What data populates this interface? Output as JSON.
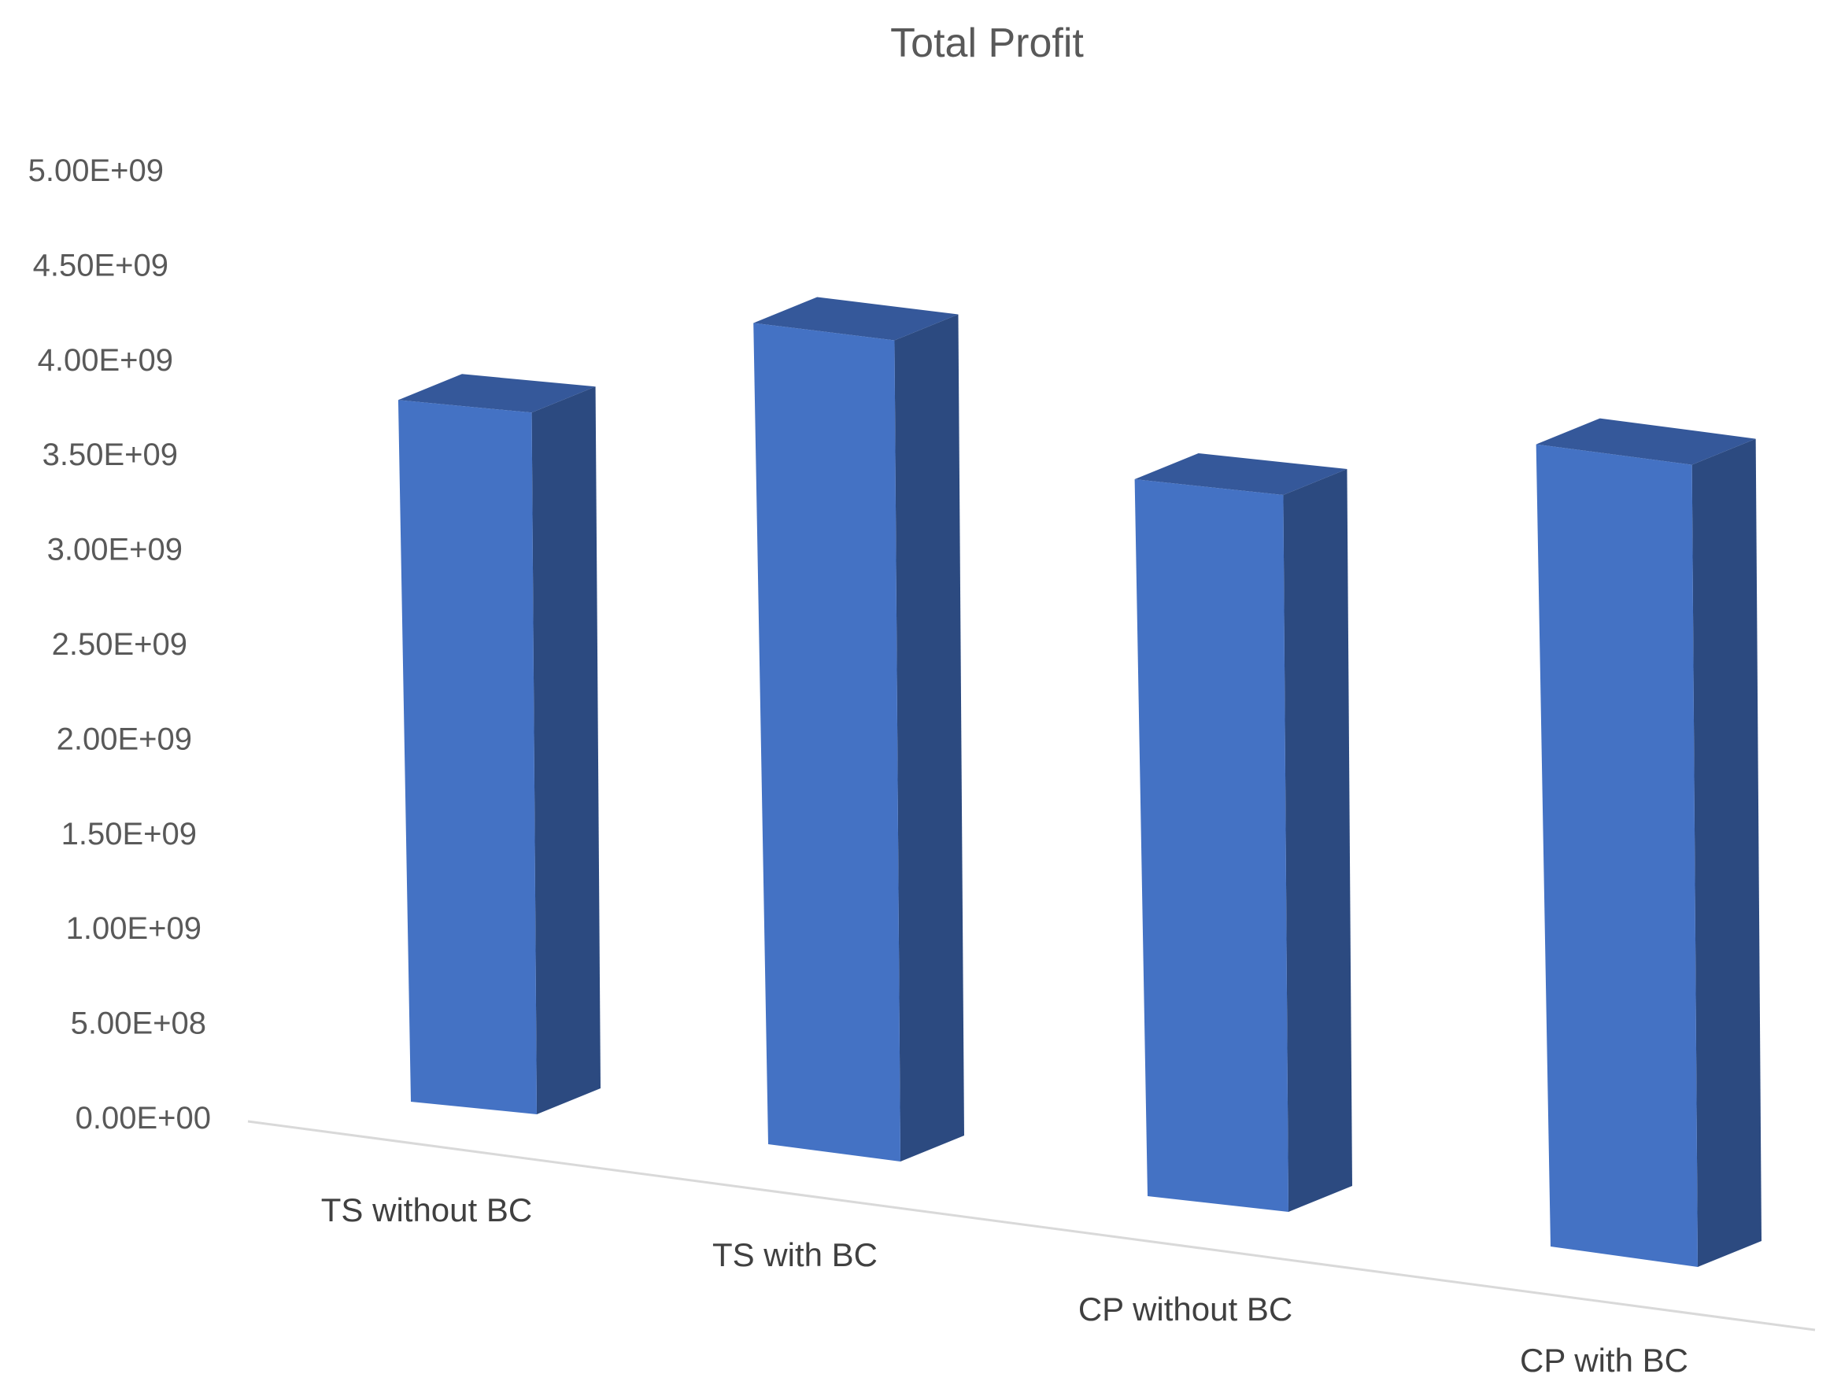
{
  "chart_data": {
    "type": "bar",
    "title": "Total Profit",
    "xlabel": "",
    "ylabel": "",
    "ylim": [
      0,
      5000000000
    ],
    "categories": [
      "TS without BC",
      "TS with BC",
      "CP without BC",
      "CP with BC"
    ],
    "values": [
      3700000000,
      4330000000,
      3780000000,
      4230000000
    ],
    "y_tick_labels": [
      "0.00E+00",
      "5.00E+08",
      "1.00E+09",
      "1.50E+09",
      "2.00E+09",
      "2.50E+09",
      "3.00E+09",
      "3.50E+09",
      "4.00E+09",
      "4.50E+09",
      "5.00E+09"
    ],
    "grid": false,
    "legend": "none",
    "colors": {
      "front": "#4472c4",
      "side": "#2c4a80",
      "top": "#35589a",
      "text": "#595959",
      "floor": "#d9d9d9"
    }
  }
}
